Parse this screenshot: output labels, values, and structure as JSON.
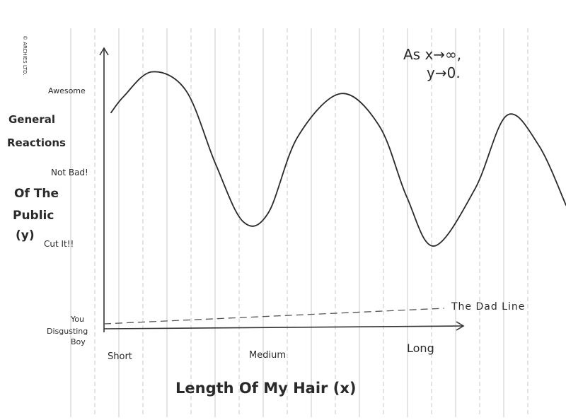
{
  "publisher_mark": "© ARCHIES LTD.",
  "note": {
    "line1": "As x→∞,",
    "line2": "y→0."
  },
  "chart_data": {
    "type": "line",
    "title": "",
    "xlabel": "Length Of My Hair (x)",
    "ylabel_lines": [
      "General",
      "Reactions",
      "Of The",
      "Public",
      "(y)"
    ],
    "x_tick_labels": [
      "Short",
      "Medium",
      "Long"
    ],
    "y_tick_labels": [
      "Awesome",
      "Not Bad!",
      "Cut It!!",
      "You Disgusting Boy"
    ],
    "annotations": [
      "The Dad Line"
    ],
    "grid": true,
    "xlim": [
      0,
      10
    ],
    "ylim": [
      0,
      10
    ],
    "series": [
      {
        "x": [
          0.0,
          0.28,
          0.9,
          1.65,
          2.3,
          2.9,
          3.45,
          4.1,
          5.05,
          5.9,
          6.5,
          7.1,
          8.0,
          8.7,
          9.4,
          10.0
        ],
        "y": [
          8.2,
          8.8,
          9.7,
          9.0,
          6.3,
          4.2,
          4.5,
          7.3,
          8.9,
          7.7,
          5.1,
          3.3,
          5.4,
          8.1,
          7.0,
          4.8
        ]
      }
    ],
    "reference_line": {
      "name": "The Dad Line",
      "y": 0.5,
      "style": "dashed"
    }
  }
}
